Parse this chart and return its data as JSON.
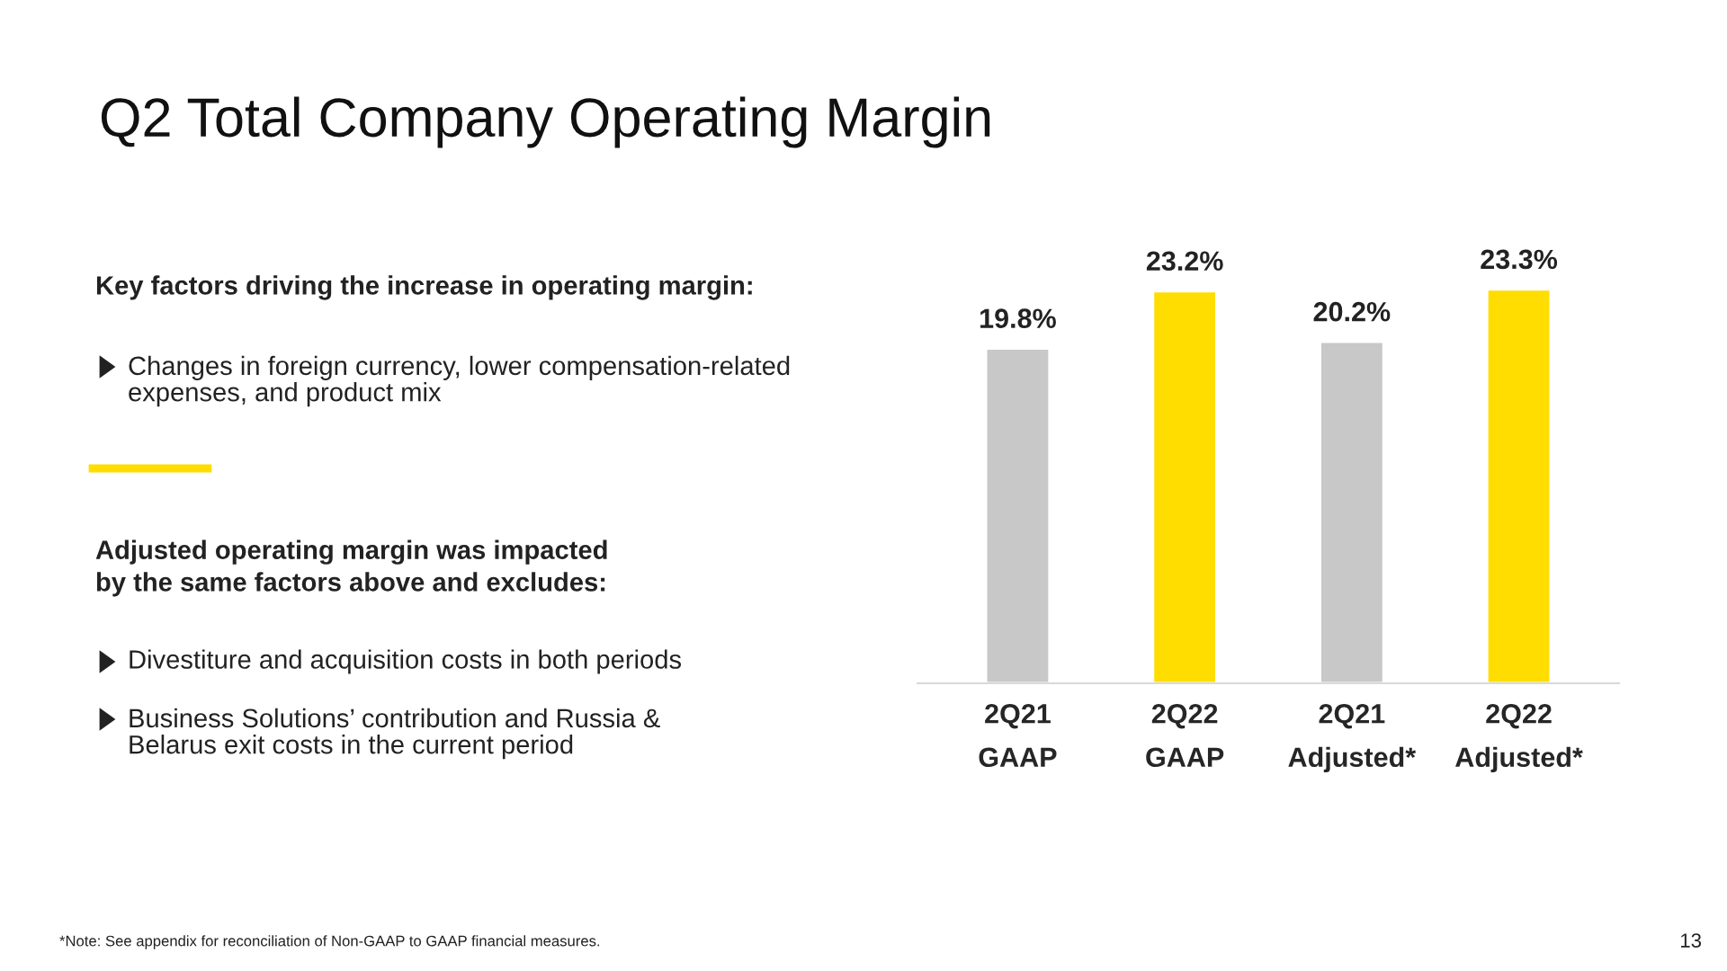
{
  "chart_data": {
    "type": "bar",
    "title": "Q2 Total Company Operating Margin",
    "categories": [
      "2Q21\nGAAP",
      "2Q22\nGAAP",
      "2Q21\nAdjusted*",
      "2Q22\nAdjusted*"
    ],
    "values": [
      19.8,
      23.2,
      20.2,
      23.3
    ],
    "value_labels": [
      "19.8%",
      "23.2%",
      "20.2%",
      "23.3%"
    ],
    "colors": [
      "#c8c8c8",
      "#ffdd00",
      "#c8c8c8",
      "#ffdd00"
    ],
    "tick_labels": "x",
    "grid": false,
    "legend": false,
    "annotations": [
      "Key factors driving the increase in operating margin:",
      "Changes in foreign currency, lower compensation-related\nexpenses, and product mix",
      "Adjusted operating margin was impacted\nby the same factors above and excludes:",
      "Divestiture and acquisition costs in both periods",
      "Business Solutions’ contribution and Russia &\nBelarus exit costs in the current period",
      "*Note: See appendix for reconciliation of Non-GAAP to GAAP financial measures.",
      "13"
    ]
  }
}
